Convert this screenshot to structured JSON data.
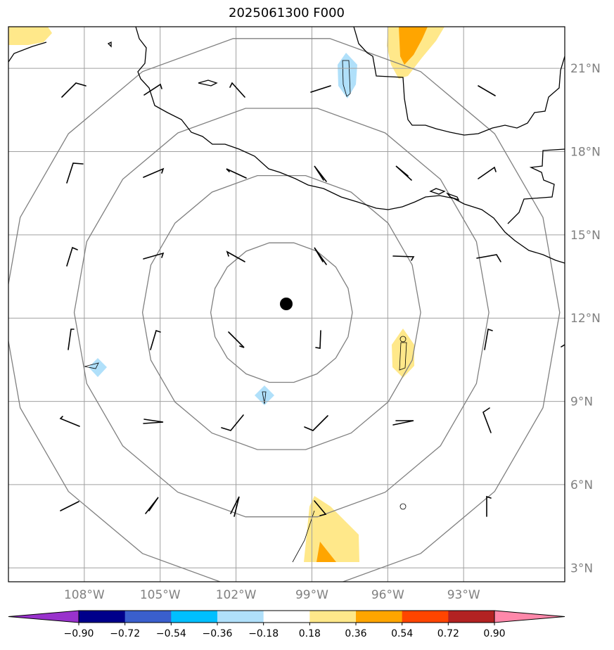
{
  "title": "2025061300 F000",
  "map": {
    "lon_range": [
      -111,
      -89
    ],
    "lat_range": [
      2.5,
      22.5
    ],
    "lon_ticks": [
      {
        "value": -108,
        "label": "108°W"
      },
      {
        "value": -105,
        "label": "105°W"
      },
      {
        "value": -102,
        "label": "102°W"
      },
      {
        "value": -99,
        "label": "99°W"
      },
      {
        "value": -96,
        "label": "96°W"
      },
      {
        "value": -93,
        "label": "93°W"
      }
    ],
    "lat_ticks": [
      {
        "value": 3,
        "label": "3°N"
      },
      {
        "value": 6,
        "label": "6°N"
      },
      {
        "value": 9,
        "label": "9°N"
      },
      {
        "value": 12,
        "label": "12°N"
      },
      {
        "value": 15,
        "label": "15°N"
      },
      {
        "value": 18,
        "label": "18°N"
      },
      {
        "value": 21,
        "label": "21°N"
      }
    ],
    "center": {
      "lon": -100.2,
      "lat": 12.2
    },
    "range_rings_deg": [
      2.8,
      5.5,
      8.2,
      11.0
    ],
    "colors": {
      "grid": "#a0a0a0",
      "ring": "#808080",
      "coast": "#000000",
      "tick_label": "#808080"
    }
  },
  "colorbar": {
    "bounds": [
      "−0.90",
      "−0.72",
      "−0.54",
      "−0.36",
      "−0.18",
      "0.18",
      "0.36",
      "0.54",
      "0.72",
      "0.90"
    ],
    "colors": [
      "#9932cc",
      "#00008b",
      "#3a5fcd",
      "#00bfff",
      "#b0e0fa",
      "#ffffff",
      "#ffe88a",
      "#ffa500",
      "#ff4500",
      "#b22222",
      "#ff88aa"
    ]
  },
  "fill_colors": {
    "light_yellow": "#ffe88a",
    "orange": "#ffa500",
    "light_blue": "#b0e0fa"
  }
}
